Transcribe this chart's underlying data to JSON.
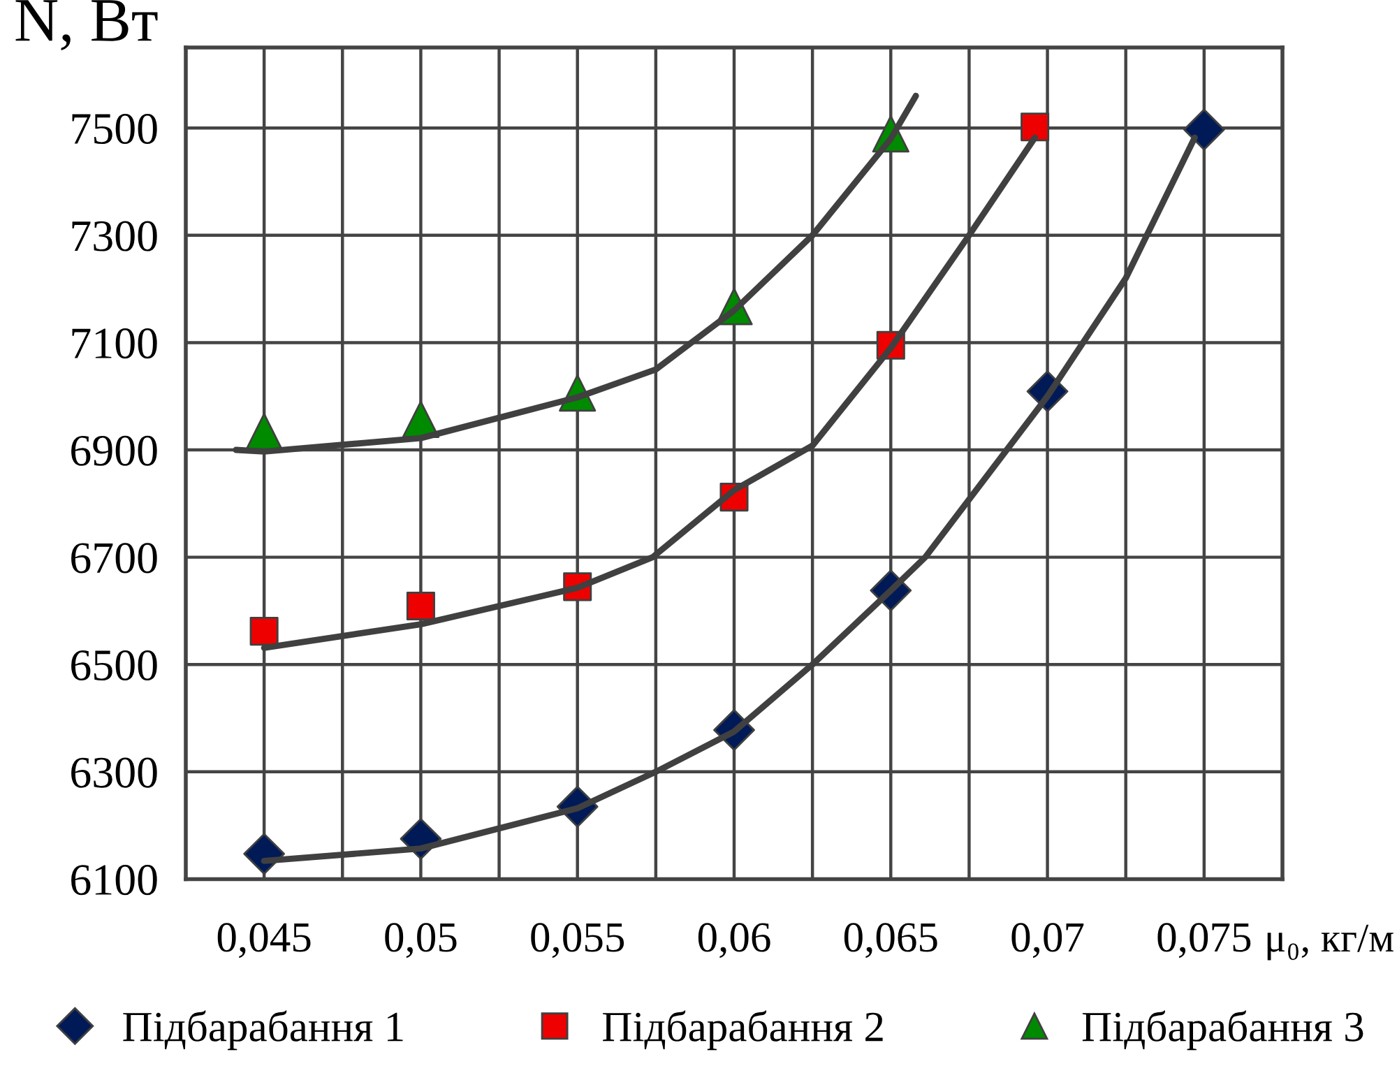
{
  "chart_data": {
    "type": "scatter",
    "ylabel": "N, Вт",
    "xlabel": "μ₀, кг/м",
    "xlim": [
      0.0425,
      0.0775
    ],
    "ylim": [
      6100,
      7650
    ],
    "xticks": [
      {
        "value": 0.045,
        "label": "0,045"
      },
      {
        "value": 0.0475,
        "label": null
      },
      {
        "value": 0.05,
        "label": "0,05"
      },
      {
        "value": 0.0525,
        "label": null
      },
      {
        "value": 0.055,
        "label": "0,055"
      },
      {
        "value": 0.0575,
        "label": null
      },
      {
        "value": 0.06,
        "label": "0,06"
      },
      {
        "value": 0.0625,
        "label": null
      },
      {
        "value": 0.065,
        "label": "0,065"
      },
      {
        "value": 0.0675,
        "label": null
      },
      {
        "value": 0.07,
        "label": "0,07"
      },
      {
        "value": 0.0725,
        "label": null
      },
      {
        "value": 0.075,
        "label": "0,075"
      }
    ],
    "yticks": [
      6100,
      6300,
      6500,
      6700,
      6900,
      7100,
      7300,
      7500
    ],
    "grid": true,
    "legend": "bottom",
    "series": [
      {
        "type": "line",
        "color": "#404040",
        "marker": "none",
        "x": [
          0.045,
          0.05,
          0.055,
          0.0575,
          0.06,
          0.0625,
          0.065,
          0.0661,
          0.07,
          0.0725,
          0.0747
        ],
        "values": [
          6134,
          6157,
          6232,
          6300,
          6375,
          6500,
          6638,
          6700,
          7000,
          7220,
          7482
        ]
      },
      {
        "type": "line",
        "color": "#404040",
        "marker": "none",
        "x": [
          0.045,
          0.05,
          0.055,
          0.0574,
          0.06,
          0.0625,
          0.065,
          0.0675,
          0.0696
        ],
        "values": [
          6531,
          6575,
          6643,
          6700,
          6825,
          6908,
          7090,
          7300,
          7482
        ]
      },
      {
        "type": "line",
        "color": "#404040",
        "marker": "none",
        "x": [
          0.0441,
          0.045,
          0.05,
          0.055,
          0.0575,
          0.06,
          0.0625,
          0.065,
          0.0658
        ],
        "values": [
          6900,
          6897,
          6922,
          6998,
          7050,
          7160,
          7300,
          7480,
          7560
        ]
      },
      {
        "name": "Підбарабання 1",
        "color": "#001a57",
        "marker": "diamond",
        "x": [
          0.045,
          0.05,
          0.055,
          0.06,
          0.065,
          0.07,
          0.075
        ],
        "values": [
          6147,
          6175,
          6235,
          6378,
          6638,
          7009,
          7497
        ]
      },
      {
        "name": "Підбарабання 2",
        "color": "#ee0000",
        "marker": "square",
        "x": [
          0.045,
          0.05,
          0.055,
          0.06,
          0.065,
          0.0696
        ],
        "values": [
          6562,
          6609,
          6645,
          6812,
          7095,
          7502
        ]
      },
      {
        "name": "Підбарабання 3",
        "color": "#008a00",
        "marker": "triangle",
        "x": [
          0.045,
          0.05,
          0.055,
          0.06,
          0.065
        ],
        "values": [
          6934,
          6957,
          7006,
          7167,
          7489
        ]
      }
    ]
  }
}
